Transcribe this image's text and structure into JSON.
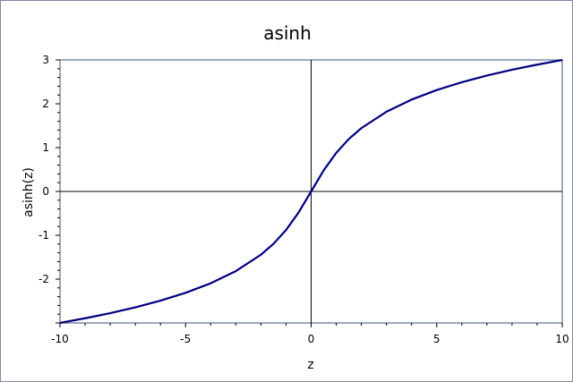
{
  "chart_data": {
    "type": "line",
    "title": "asinh",
    "xlabel": "z",
    "ylabel": "asinh(z)",
    "xlim": [
      -10,
      10
    ],
    "ylim": [
      -3,
      3
    ],
    "xticks": [
      -10,
      -5,
      0,
      5,
      10
    ],
    "yticks": [
      3,
      2,
      1,
      0,
      -1,
      -2
    ],
    "grid": false,
    "zero_lines": true,
    "series": [
      {
        "color": "#000080",
        "x": [
          -10,
          -9,
          -8,
          -7,
          -6,
          -5,
          -4,
          -3,
          -2,
          -1.5,
          -1,
          -0.5,
          0,
          0.5,
          1,
          1.5,
          2,
          3,
          4,
          5,
          6,
          7,
          8,
          9,
          10
        ],
        "y": [
          -2.998,
          -2.893,
          -2.776,
          -2.644,
          -2.492,
          -2.312,
          -2.095,
          -1.818,
          -1.444,
          -1.195,
          -0.881,
          -0.481,
          0,
          0.481,
          0.881,
          1.195,
          1.444,
          1.818,
          2.095,
          2.312,
          2.492,
          2.644,
          2.776,
          2.893,
          2.998
        ]
      }
    ]
  }
}
